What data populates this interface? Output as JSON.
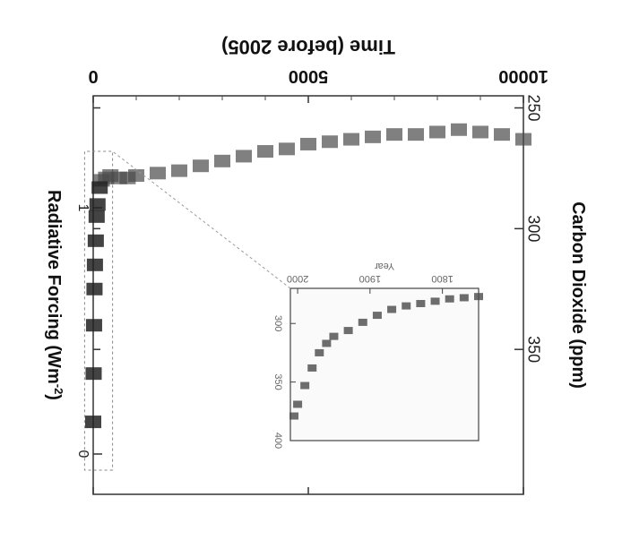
{
  "chart_data": {
    "type": "scatter",
    "orientation": "rotated-180",
    "xlabel": "Time (before 2005)",
    "ylabel": "Carbon Dioxide (ppm)",
    "y2label": "Radiative Forcing (Wm-2)",
    "y2_tick_labels": [
      "0",
      "1"
    ],
    "xlim": [
      10000,
      0
    ],
    "ylim": [
      245,
      410
    ],
    "x_ticks": [
      10000,
      5000,
      0
    ],
    "x_tick_labels": [
      "10000",
      "5000",
      "0"
    ],
    "y_ticks": [
      250,
      300,
      350
    ],
    "y_tick_labels": [
      "250",
      "300",
      "350"
    ],
    "grid": false,
    "series": [
      {
        "x": [
          10000,
          9500,
          9000,
          8500,
          8000,
          7500,
          7000,
          6500,
          6000,
          5500,
          5000,
          4500,
          4000,
          3500,
          3000,
          2500,
          2000,
          1500,
          1000,
          800,
          600,
          400,
          300,
          200
        ],
        "values": [
          263,
          261,
          260,
          259,
          260,
          261,
          261,
          262,
          263,
          264,
          265,
          267,
          268,
          270,
          272,
          274,
          276,
          277,
          278,
          279,
          279,
          278,
          279,
          280
        ],
        "color": "#4a4a4a"
      },
      {
        "x": [
          150,
          100,
          80,
          60,
          40,
          30,
          20,
          10,
          0
        ],
        "values": [
          283,
          290,
          295,
          305,
          315,
          325,
          340,
          360,
          380
        ],
        "color": "#222222"
      }
    ],
    "inset": {
      "xlabel": "Year",
      "xlim": [
        1750,
        2010
      ],
      "ylim": [
        270,
        400
      ],
      "x_ticks": [
        1800,
        1900,
        2000
      ],
      "x_tick_labels": [
        "1800",
        "1900",
        "2000"
      ],
      "y_ticks": [
        300,
        350,
        400
      ],
      "y_tick_labels": [
        "300",
        "350",
        "400"
      ],
      "x": [
        1750,
        1770,
        1790,
        1810,
        1830,
        1850,
        1870,
        1890,
        1910,
        1930,
        1950,
        1960,
        1970,
        1980,
        1990,
        2000,
        2005
      ],
      "values": [
        277,
        278,
        279,
        281,
        283,
        285,
        288,
        293,
        299,
        306,
        311,
        317,
        325,
        338,
        353,
        369,
        379
      ]
    }
  }
}
